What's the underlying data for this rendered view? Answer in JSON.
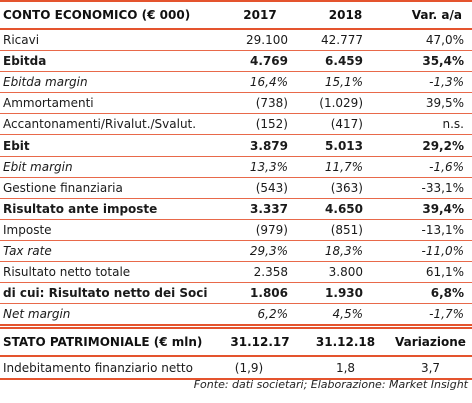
{
  "income": {
    "header": {
      "label": "CONTO ECONOMICO (€ 000)",
      "y1": "2017",
      "y2": "2018",
      "var": "Var. a/a"
    },
    "rows": [
      {
        "label": "Ricavi",
        "v1": "29.100",
        "v2": "42.777",
        "v3": "47,0%"
      },
      {
        "label": "Ebitda",
        "v1": "4.769",
        "v2": "6.459",
        "v3": "35,4%"
      },
      {
        "label": "Ebitda margin",
        "v1": "16,4%",
        "v2": "15,1%",
        "v3": "-1,3%"
      },
      {
        "label": "Ammortamenti",
        "v1": "(738)",
        "v2": "(1.029)",
        "v3": "39,5%"
      },
      {
        "label": "Accantonamenti/Rivalut./Svalut.",
        "v1": "(152)",
        "v2": "(417)",
        "v3": "n.s."
      },
      {
        "label": "Ebit",
        "v1": "3.879",
        "v2": "5.013",
        "v3": "29,2%"
      },
      {
        "label": "Ebit margin",
        "v1": "13,3%",
        "v2": "11,7%",
        "v3": "-1,6%"
      },
      {
        "label": "Gestione finanziaria",
        "v1": "(543)",
        "v2": "(363)",
        "v3": "-33,1%"
      },
      {
        "label": "Risultato ante imposte",
        "v1": "3.337",
        "v2": "4.650",
        "v3": "39,4%"
      },
      {
        "label": "Imposte",
        "v1": "(979)",
        "v2": "(851)",
        "v3": "-13,1%"
      },
      {
        "label": "Tax rate",
        "v1": "29,3%",
        "v2": "18,3%",
        "v3": "-11,0%"
      },
      {
        "label": "Risultato netto totale",
        "v1": "2.358",
        "v2": "3.800",
        "v3": "61,1%"
      },
      {
        "label": "di cui: Risultato netto dei Soci",
        "v1": "1.806",
        "v2": "1.930",
        "v3": "6,8%"
      },
      {
        "label": "Net margin",
        "v1": "6,2%",
        "v2": "4,5%",
        "v3": "-1,7%"
      }
    ]
  },
  "balance": {
    "header": {
      "label": "STATO PATRIMONIALE (€ mln)",
      "d1": "31.12.17",
      "d2": "31.12.18",
      "var": "Variazione"
    },
    "row": {
      "label": "Indebitamento finanziario netto",
      "v1": "(1,9)",
      "v2": "1,8",
      "v3": "3,7"
    }
  },
  "source": "Fonte: dati societari; Elaborazione: Market Insight",
  "colors": {
    "accent": "#e4542e"
  }
}
